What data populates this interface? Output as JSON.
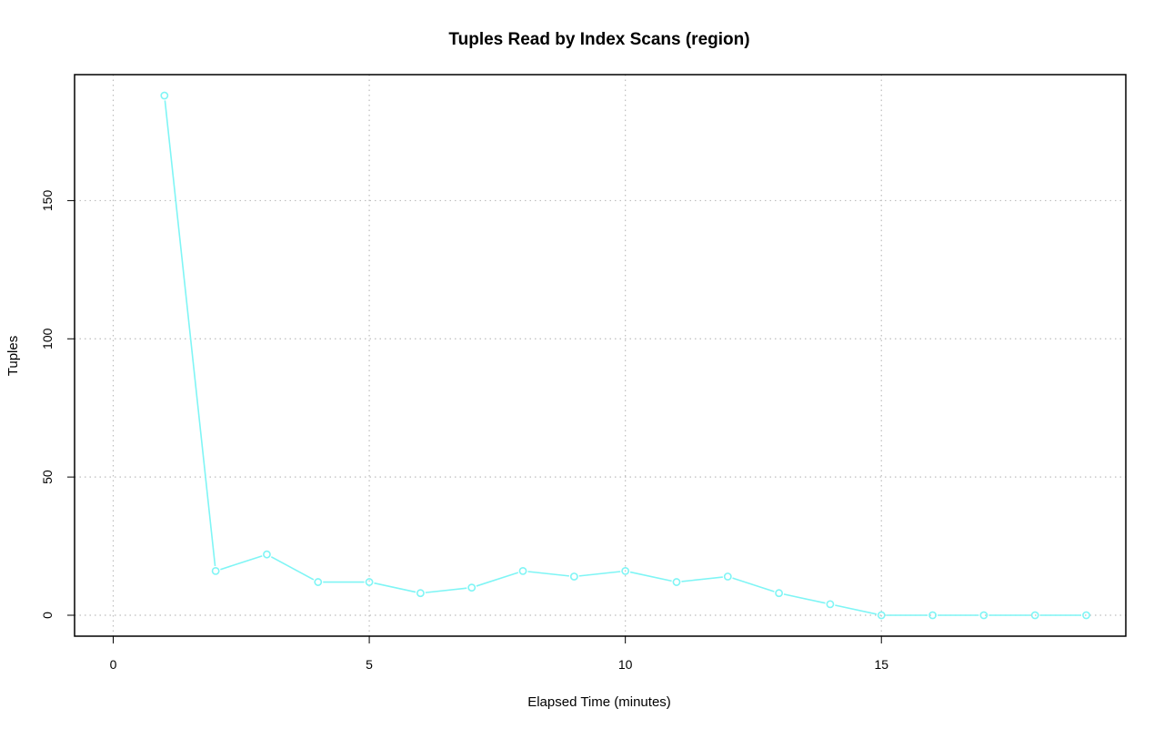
{
  "chart_data": {
    "type": "line",
    "title": "Tuples Read by Index Scans (region)",
    "xlabel": "Elapsed Time (minutes)",
    "ylabel": "Tuples",
    "xlim": [
      0,
      19
    ],
    "ylim": [
      0,
      188
    ],
    "x_ticks": [
      0,
      5,
      10,
      15
    ],
    "y_ticks": [
      0,
      50,
      100,
      150
    ],
    "grid": true,
    "series": [
      {
        "color": "#7ff5f5",
        "x": [
          1,
          2,
          3,
          4,
          5,
          6,
          7,
          8,
          9,
          10,
          11,
          12,
          13,
          14,
          15,
          16,
          17,
          18,
          19
        ],
        "y": [
          188,
          16,
          22,
          12,
          12,
          8,
          10,
          16,
          14,
          16,
          12,
          14,
          8,
          4,
          0,
          0,
          0,
          0,
          0
        ]
      }
    ]
  }
}
